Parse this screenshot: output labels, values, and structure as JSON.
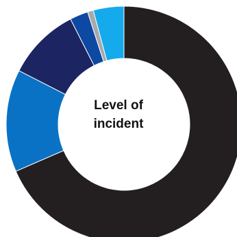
{
  "chart_data": {
    "type": "pie",
    "style": "donut",
    "center_label": {
      "line1": "Level of",
      "line2": "incident"
    },
    "slices": [
      {
        "value": 68.5,
        "color": "#231f20"
      },
      {
        "value": 14.0,
        "color": "#0a72c4"
      },
      {
        "value": 10.0,
        "color": "#1c2461"
      },
      {
        "value": 2.5,
        "color": "#0d48a2"
      },
      {
        "value": 0.8,
        "color": "#a7a9ac"
      },
      {
        "value": 4.2,
        "color": "#14aaeb"
      }
    ],
    "legend": "none"
  }
}
